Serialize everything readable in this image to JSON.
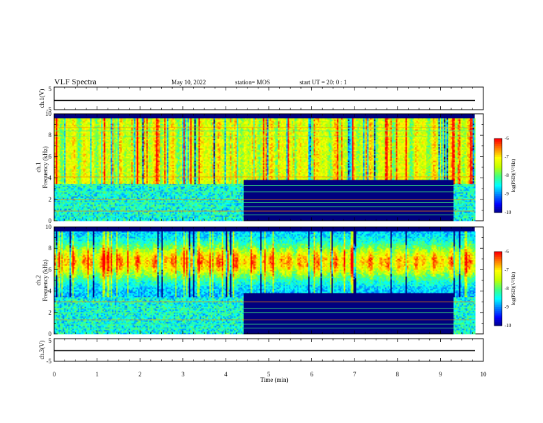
{
  "header": {
    "title": "VLF Spectra",
    "date": "May 10, 2022",
    "station": "station= MOS",
    "start": "start  UT =   20: 0  : 1"
  },
  "xaxis": {
    "label": "Time  (min)",
    "ticks": [
      0,
      1,
      2,
      3,
      4,
      5,
      6,
      7,
      8,
      9,
      10
    ],
    "range": [
      0,
      10
    ]
  },
  "colors": {
    "scale": [
      "#00007f",
      "#0000ff",
      "#0080ff",
      "#00ffff",
      "#40ff80",
      "#c0ff00",
      "#ffff00",
      "#ff8000",
      "#ff0000"
    ]
  },
  "chart_data": [
    {
      "type": "line",
      "name": "ch1-waveform",
      "ylabel": "ch.1(V)",
      "ylim": [
        -5,
        5
      ],
      "yticks": [
        "5",
        "-5"
      ],
      "x": [
        0,
        10
      ],
      "y": [
        0,
        0
      ]
    },
    {
      "type": "heatmap",
      "name": "ch1-spectrogram",
      "ylabel": "ch.1\nFrequency  (kHz)",
      "ylim": [
        0,
        10
      ],
      "yticks": [
        0,
        2,
        4,
        6,
        8,
        10
      ],
      "xlim": [
        0,
        9.8
      ],
      "break_times_min": [
        4.4,
        9.3
      ],
      "colorbar": {
        "label": "log(PSD)(V²/Hz)",
        "range": [
          -10,
          -6
        ],
        "ticks": [
          "-6",
          "-7",
          "-8",
          "-9",
          "-10"
        ]
      }
    },
    {
      "type": "heatmap",
      "name": "ch2-spectrogram",
      "ylabel": "ch.2\nFrequency  (kHz)",
      "ylim": [
        0,
        10
      ],
      "yticks": [
        0,
        2,
        4,
        6,
        8,
        10
      ],
      "xlim": [
        0,
        9.8
      ],
      "break_times_min": [
        4.4,
        9.3
      ],
      "colorbar": {
        "label": "log(PSD)(V²/Hz)",
        "range": [
          -10,
          -6
        ],
        "ticks": [
          "-6",
          "-7",
          "-8",
          "-9",
          "-10"
        ]
      }
    },
    {
      "type": "line",
      "name": "ch3-waveform",
      "ylabel": "ch.3(V)",
      "ylim": [
        -5,
        5
      ],
      "yticks": [
        "5",
        "-5"
      ],
      "x": [
        0,
        10
      ],
      "y": [
        0,
        0
      ]
    }
  ]
}
